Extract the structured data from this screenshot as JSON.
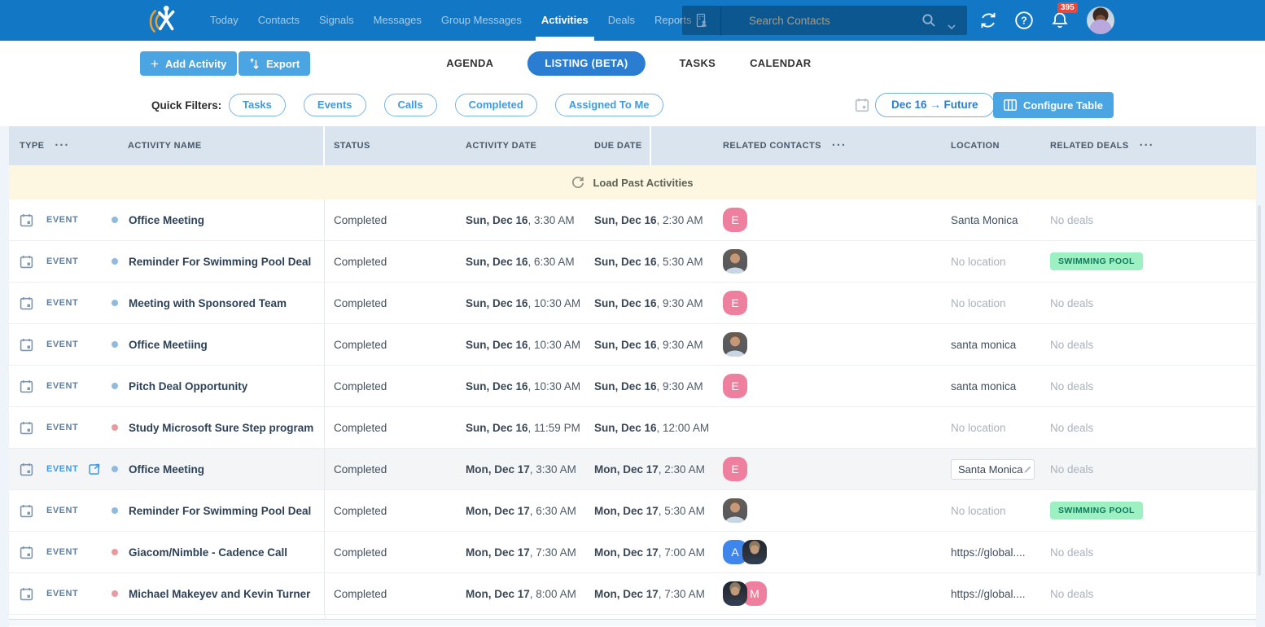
{
  "navbar": {
    "items": [
      {
        "label": "Today"
      },
      {
        "label": "Contacts"
      },
      {
        "label": "Signals"
      },
      {
        "label": "Messages"
      },
      {
        "label": "Group Messages"
      },
      {
        "label": "Activities",
        "active": true
      },
      {
        "label": "Deals"
      },
      {
        "label": "Reports"
      }
    ],
    "search_placeholder": "Search Contacts",
    "notification_count": "395"
  },
  "toolbar": {
    "add_activity_label": "Add Activity",
    "export_label": "Export",
    "view_tabs": [
      {
        "label": "AGENDA"
      },
      {
        "label": "LISTING (BETA)",
        "active": true
      },
      {
        "label": "TASKS"
      },
      {
        "label": "CALENDAR"
      }
    ]
  },
  "filters": {
    "label": "Quick Filters:",
    "pills": [
      {
        "label": "Tasks"
      },
      {
        "label": "Events"
      },
      {
        "label": "Calls"
      },
      {
        "label": "Completed"
      },
      {
        "label": "Assigned To Me"
      }
    ],
    "date_range_label": "Dec 16 → Future",
    "configure_table_label": "Configure Table"
  },
  "table": {
    "columns": [
      {
        "label": "TYPE",
        "menu": true
      },
      {
        "label": "ACTIVITY NAME"
      },
      {
        "label": "STATUS"
      },
      {
        "label": "ACTIVITY DATE"
      },
      {
        "label": "DUE DATE"
      },
      {
        "label": "RELATED CONTACTS",
        "menu": true
      },
      {
        "label": "LOCATION"
      },
      {
        "label": "RELATED DEALS",
        "menu": true
      }
    ],
    "load_past_label": "Load Past Activities",
    "rows": [
      {
        "type": "EVENT",
        "dot": "blue",
        "name": "Office Meeting",
        "status": "Completed",
        "activity_date": "Sun, Dec 16",
        "activity_time": ", 3:30 AM",
        "due_date": "Sun, Dec 16",
        "due_time": ", 2:30 AM",
        "contacts": [
          {
            "kind": "initial",
            "letter": "E",
            "color": "pink"
          }
        ],
        "location": "Santa Monica",
        "location_muted": false,
        "deal_text": "No deals",
        "deal_badge": null
      },
      {
        "type": "EVENT",
        "dot": "blue",
        "name": "Reminder For Swimming Pool Deal",
        "status": "Completed",
        "activity_date": "Sun, Dec 16",
        "activity_time": ", 6:30 AM",
        "due_date": "Sun, Dec 16",
        "due_time": ", 5:30 AM",
        "contacts": [
          {
            "kind": "photo",
            "variant": "a"
          }
        ],
        "location": "No location",
        "location_muted": true,
        "deal_text": null,
        "deal_badge": "SWIMMING POOL"
      },
      {
        "type": "EVENT",
        "dot": "blue",
        "name": "Meeting with Sponsored Team",
        "status": "Completed",
        "activity_date": "Sun, Dec 16",
        "activity_time": ", 10:30 AM",
        "due_date": "Sun, Dec 16",
        "due_time": ", 9:30 AM",
        "contacts": [
          {
            "kind": "initial",
            "letter": "E",
            "color": "pink"
          }
        ],
        "location": "No location",
        "location_muted": true,
        "deal_text": "No deals",
        "deal_badge": null
      },
      {
        "type": "EVENT",
        "dot": "blue",
        "name": "Office Meetiing",
        "status": "Completed",
        "activity_date": "Sun, Dec 16",
        "activity_time": ", 10:30 AM",
        "due_date": "Sun, Dec 16",
        "due_time": ", 9:30 AM",
        "contacts": [
          {
            "kind": "photo",
            "variant": "a"
          }
        ],
        "location": "santa monica",
        "location_muted": false,
        "deal_text": "No deals",
        "deal_badge": null
      },
      {
        "type": "EVENT",
        "dot": "blue",
        "name": "Pitch Deal Opportunity",
        "status": "Completed",
        "activity_date": "Sun, Dec 16",
        "activity_time": ", 10:30 AM",
        "due_date": "Sun, Dec 16",
        "due_time": ", 9:30 AM",
        "contacts": [
          {
            "kind": "initial",
            "letter": "E",
            "color": "pink"
          }
        ],
        "location": "santa monica",
        "location_muted": false,
        "deal_text": "No deals",
        "deal_badge": null
      },
      {
        "type": "EVENT",
        "dot": "red",
        "name": "Study Microsoft Sure Step program",
        "status": "Completed",
        "activity_date": "Sun, Dec 16",
        "activity_time": ", 11:59 PM",
        "due_date": "Sun, Dec 16",
        "due_time": ", 12:00 AM",
        "contacts": [],
        "location": "No location",
        "location_muted": true,
        "deal_text": "No deals",
        "deal_badge": null
      },
      {
        "type": "EVENT",
        "dot": "blue",
        "name": "Office Meeting",
        "status": "Completed",
        "hovered": true,
        "activity_date": "Mon, Dec 17",
        "activity_time": ", 3:30 AM",
        "due_date": "Mon, Dec 17",
        "due_time": ", 2:30 AM",
        "contacts": [
          {
            "kind": "initial",
            "letter": "E",
            "color": "pink"
          }
        ],
        "location": "Santa Monica",
        "location_muted": false,
        "location_editable": true,
        "deal_text": "No deals",
        "deal_badge": null
      },
      {
        "type": "EVENT",
        "dot": "blue",
        "name": "Reminder For Swimming Pool Deal",
        "status": "Completed",
        "activity_date": "Mon, Dec 17",
        "activity_time": ", 6:30 AM",
        "due_date": "Mon, Dec 17",
        "due_time": ", 5:30 AM",
        "contacts": [
          {
            "kind": "photo",
            "variant": "a"
          }
        ],
        "location": "No location",
        "location_muted": true,
        "deal_text": null,
        "deal_badge": "SWIMMING POOL"
      },
      {
        "type": "EVENT",
        "dot": "red",
        "name": "Giacom/Nimble - Cadence Call",
        "status": "Completed",
        "activity_date": "Mon, Dec 17",
        "activity_time": ", 7:30 AM",
        "due_date": "Mon, Dec 17",
        "due_time": ", 7:00 AM",
        "contacts": [
          {
            "kind": "initial",
            "letter": "A",
            "color": "blue"
          },
          {
            "kind": "photo",
            "variant": "b"
          }
        ],
        "location": "https://global....",
        "location_muted": false,
        "deal_text": "No deals",
        "deal_badge": null
      },
      {
        "type": "EVENT",
        "dot": "red",
        "name": "Michael Makeyev and Kevin Turner",
        "status": "Completed",
        "activity_date": "Mon, Dec 17",
        "activity_time": ", 8:00 AM",
        "due_date": "Mon, Dec 17",
        "due_time": ", 7:30 AM",
        "contacts": [
          {
            "kind": "photo",
            "variant": "b"
          },
          {
            "kind": "initial",
            "letter": "M",
            "color": "pink"
          }
        ],
        "location": "https://global....",
        "location_muted": false,
        "deal_text": "No deals",
        "deal_badge": null
      }
    ]
  },
  "colors": {
    "navbar": "#1278c6",
    "accent_button": "#4ba5e2",
    "active_tab_pill": "#2b7dd1",
    "notification_badge": "#e8473c",
    "table_header_bg": "#d9e4ee",
    "load_row_bg": "#fdf7e1",
    "deal_badge_bg": "#9df0c2",
    "deal_badge_text": "#0f7b5e",
    "avatar_pink": "#ee7f9f",
    "avatar_blue": "#3f86ec",
    "dot_blue": "#8fbbe0",
    "dot_red": "#ea9a9c"
  }
}
